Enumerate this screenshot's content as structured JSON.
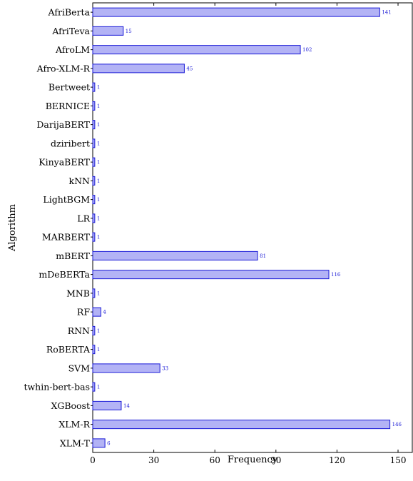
{
  "chart_data": {
    "type": "bar",
    "orientation": "horizontal",
    "categories": [
      "AfriBerta",
      "AfriTeva",
      "AfroLM",
      "Afro-XLM-R",
      "Bertweet",
      "BERNICE",
      "DarijaBERT",
      "dziribert",
      "KinyaBERT",
      "kNN",
      "LightBGM",
      "LR",
      "MARBERT",
      "mBERT",
      "mDeBERTa",
      "MNB",
      "RF",
      "RNN",
      "RoBERTA",
      "SVM",
      "twhin-bert-bas",
      "XGBoost",
      "XLM-R",
      "XLM-T"
    ],
    "values": [
      141,
      15,
      102,
      45,
      1,
      1,
      1,
      1,
      1,
      1,
      1,
      1,
      1,
      81,
      116,
      1,
      4,
      1,
      1,
      33,
      1,
      14,
      146,
      6
    ],
    "xlabel": "Frequency",
    "ylabel": "Algorithm",
    "xlim": [
      0,
      157
    ],
    "xticks": [
      0,
      30,
      60,
      90,
      120,
      150
    ],
    "grid": false,
    "bar_fill": "#b3b3f5",
    "bar_stroke": "#1a1ad6",
    "label_color": "#1a1ad6"
  }
}
